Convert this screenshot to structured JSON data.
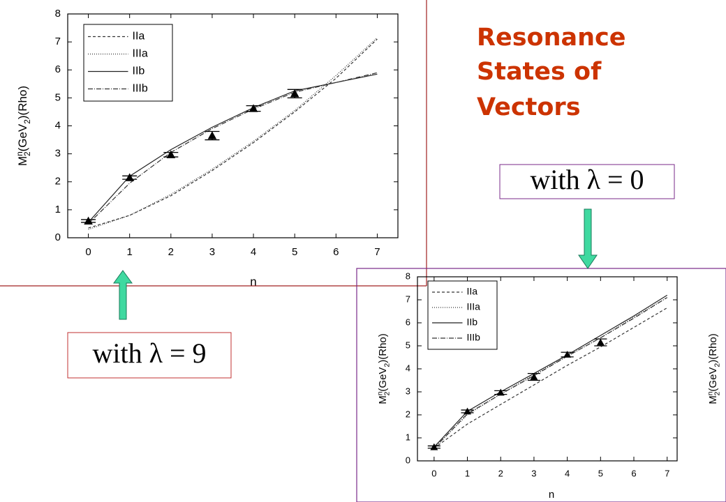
{
  "title": [
    "Resonance",
    "States of",
    "Vectors"
  ],
  "notes": [
    "with λ = 9",
    "with λ = 0"
  ],
  "chart_data": [
    {
      "type": "line",
      "xlabel": "n",
      "ylabel": [
        "M",
        "n",
        "2",
        "(GeV",
        "2",
        ")(Rho)"
      ],
      "xlim": [
        -0.5,
        7.5
      ],
      "ylim": [
        0,
        8
      ],
      "xticks": [
        0,
        1,
        2,
        3,
        4,
        5,
        6,
        7
      ],
      "yticks": [
        0,
        1,
        2,
        3,
        4,
        5,
        6,
        7,
        8
      ],
      "legend": "upper left",
      "x": [
        0,
        1,
        2,
        3,
        4,
        5,
        6,
        7
      ],
      "series": [
        {
          "name": "IIa",
          "color": "#333333",
          "dash": "4 3",
          "values": [
            0.35,
            0.8,
            1.5,
            2.4,
            3.4,
            4.5,
            5.7,
            7.1
          ]
        },
        {
          "name": "IIIa",
          "color": "#333333",
          "dash": "1 2",
          "values": [
            0.3,
            0.8,
            1.55,
            2.45,
            3.45,
            4.55,
            5.8,
            7.15
          ]
        },
        {
          "name": "IIb",
          "color": "#222222",
          "dash": "none",
          "values": [
            0.55,
            2.2,
            3.15,
            3.95,
            4.65,
            5.25,
            5.55,
            5.85
          ]
        },
        {
          "name": "IIIb",
          "color": "#333333",
          "dash": "7 2 1 2",
          "values": [
            0.5,
            1.95,
            3.05,
            3.9,
            4.6,
            5.2,
            5.55,
            5.9
          ]
        }
      ],
      "measurements": {
        "x": [
          0,
          1,
          2,
          3,
          4,
          5
        ],
        "values": [
          0.6,
          2.15,
          2.97,
          3.65,
          4.62,
          5.15
        ],
        "errors": [
          0.05,
          0.06,
          0.08,
          0.15,
          0.1,
          0.15
        ]
      }
    },
    {
      "type": "line",
      "xlabel": "n",
      "ylabel": [
        "M",
        "n",
        "2",
        "(GeV",
        "2",
        ")(Rho)"
      ],
      "right_label": [
        "M",
        "n",
        "2",
        "(GeV",
        "2",
        ")(Rho)"
      ],
      "xlim": [
        -0.5,
        7.3
      ],
      "ylim": [
        0,
        8
      ],
      "xticks": [
        0,
        1,
        2,
        3,
        4,
        5,
        6,
        7
      ],
      "yticks": [
        0,
        1,
        2,
        3,
        4,
        5,
        6,
        7,
        8
      ],
      "legend": "upper left",
      "x": [
        0,
        1,
        2,
        3,
        4,
        5,
        6,
        7
      ],
      "series": [
        {
          "name": "IIa",
          "color": "#333333",
          "dash": "4 3",
          "values": [
            0.55,
            1.6,
            2.45,
            3.3,
            4.15,
            4.95,
            5.8,
            6.65
          ]
        },
        {
          "name": "IIIa",
          "color": "#333333",
          "dash": "1 2",
          "values": [
            0.55,
            2.0,
            2.9,
            3.75,
            4.55,
            5.35,
            6.25,
            7.1
          ]
        },
        {
          "name": "IIb",
          "color": "#222222",
          "dash": "none",
          "values": [
            0.6,
            2.15,
            3.0,
            3.8,
            4.6,
            5.45,
            6.3,
            7.2
          ]
        },
        {
          "name": "IIIb",
          "color": "#333333",
          "dash": "7 2 1 2",
          "values": [
            0.55,
            2.05,
            2.9,
            3.7,
            4.55,
            5.35,
            6.2,
            7.1
          ]
        }
      ],
      "measurements": {
        "x": [
          0,
          1,
          2,
          3,
          4,
          5
        ],
        "values": [
          0.6,
          2.15,
          2.97,
          3.65,
          4.62,
          5.15
        ],
        "errors": [
          0.05,
          0.06,
          0.08,
          0.15,
          0.1,
          0.15
        ]
      }
    }
  ]
}
